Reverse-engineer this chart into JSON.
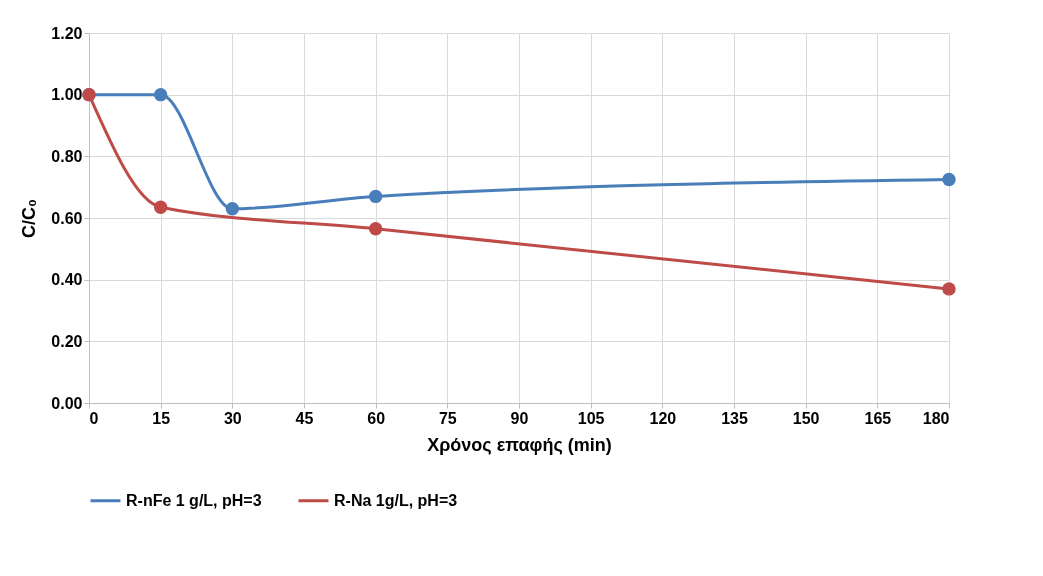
{
  "chart_data": {
    "type": "line",
    "xlabel": "Χρόνος επαφής (min)",
    "ylabel": "C/C₀",
    "xlim": [
      0,
      180
    ],
    "xticks": [
      0,
      15,
      30,
      45,
      60,
      75,
      90,
      105,
      120,
      135,
      150,
      165,
      180
    ],
    "ylim": [
      0,
      1.2
    ],
    "yticks": [
      {
        "value": 0,
        "label": "0.00"
      },
      {
        "value": 0.2,
        "label": "0.20"
      },
      {
        "value": 0.4,
        "label": "0.40"
      },
      {
        "value": 0.6,
        "label": "0.60"
      },
      {
        "value": 0.8,
        "label": "0.80"
      },
      {
        "value": 1.0,
        "label": "1.00"
      },
      {
        "value": 1.2,
        "label": "1.20"
      }
    ],
    "grid": true,
    "legend": "bottom",
    "marker": "circle",
    "line_style": "solid",
    "series": [
      {
        "name": "R-nFe 1 g/L, pH=3",
        "color": "#4a7ebb",
        "x": [
          0,
          15,
          30,
          60,
          180
        ],
        "values": [
          1.0,
          1.0,
          0.63,
          0.67,
          0.725
        ]
      },
      {
        "name": "R-Na 1g/L, pH=3",
        "color": "#be4b48",
        "x": [
          0,
          15,
          60,
          180
        ],
        "values": [
          1.0,
          0.635,
          0.565,
          0.37
        ]
      }
    ]
  }
}
